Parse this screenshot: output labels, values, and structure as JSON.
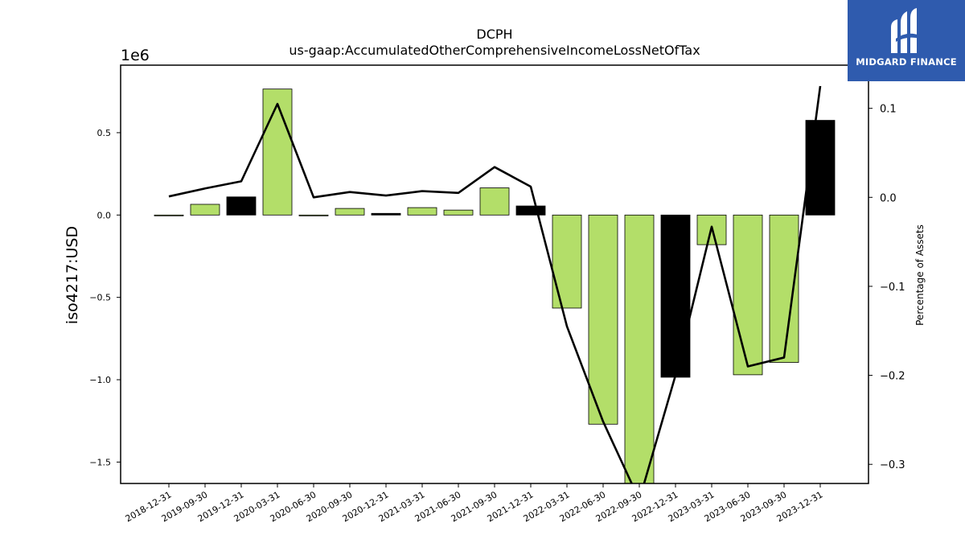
{
  "chart_data": {
    "type": "bar",
    "title": "DCPH",
    "subtitle": "us-gaap:AccumulatedOtherComprehensiveIncomeLossNetOfTax",
    "ylabel": "iso4217:USD",
    "y2label": "Percentage of Assets",
    "y_offset_label": "1e6",
    "categories": [
      "2018-12-31",
      "2019-09-30",
      "2019-12-31",
      "2020-03-31",
      "2020-06-30",
      "2020-09-30",
      "2020-12-31",
      "2021-03-31",
      "2021-06-30",
      "2021-09-30",
      "2021-12-31",
      "2022-03-31",
      "2022-06-30",
      "2022-09-30",
      "2022-12-31",
      "2023-03-31",
      "2023-06-30",
      "2023-09-30",
      "2023-12-31"
    ],
    "values": [
      -1000,
      65000,
      110000,
      765000,
      -5000,
      40000,
      10000,
      45000,
      30000,
      165000,
      55000,
      -565000,
      -1270000,
      -1650000,
      -985000,
      -180000,
      -970000,
      -895000,
      575000
    ],
    "bar_colors": [
      "#b3de69",
      "#b3de69",
      "#000000",
      "#b3de69",
      "#b3de69",
      "#b3de69",
      "#000000",
      "#b3de69",
      "#b3de69",
      "#b3de69",
      "#000000",
      "#b3de69",
      "#b3de69",
      "#b3de69",
      "#000000",
      "#b3de69",
      "#b3de69",
      "#b3de69",
      "#000000"
    ],
    "line_series": {
      "name": "Percentage of Assets",
      "values": [
        0.001,
        0.01,
        0.018,
        0.105,
        0.0,
        0.006,
        0.002,
        0.007,
        0.005,
        0.034,
        0.012,
        -0.145,
        -0.252,
        -0.34,
        -0.2,
        -0.033,
        -0.19,
        -0.18,
        0.125
      ]
    },
    "ylim": [
      -1.63,
      0.91
    ],
    "y_ticks": [
      0.5,
      0.0,
      -0.5,
      -1.0,
      -1.5
    ],
    "y_tick_labels": [
      "0.5",
      "0.0",
      "−0.5",
      "−1.0",
      "−1.5"
    ],
    "y2lim": [
      -0.3215,
      0.1485
    ],
    "y2_ticks": [
      0.1,
      0.0,
      -0.1,
      -0.2,
      -0.3
    ],
    "y2_tick_labels": [
      "0.1",
      "0.0",
      "−0.1",
      "−0.2",
      "−0.3"
    ],
    "grid": false,
    "colors": {
      "bar_primary": "#b3de69",
      "bar_secondary": "#000000",
      "line": "#000000"
    }
  },
  "logo": {
    "text": "MIDGARD FINANCE",
    "icon": "midgard-logo-icon",
    "bg": "#2f5bae"
  }
}
